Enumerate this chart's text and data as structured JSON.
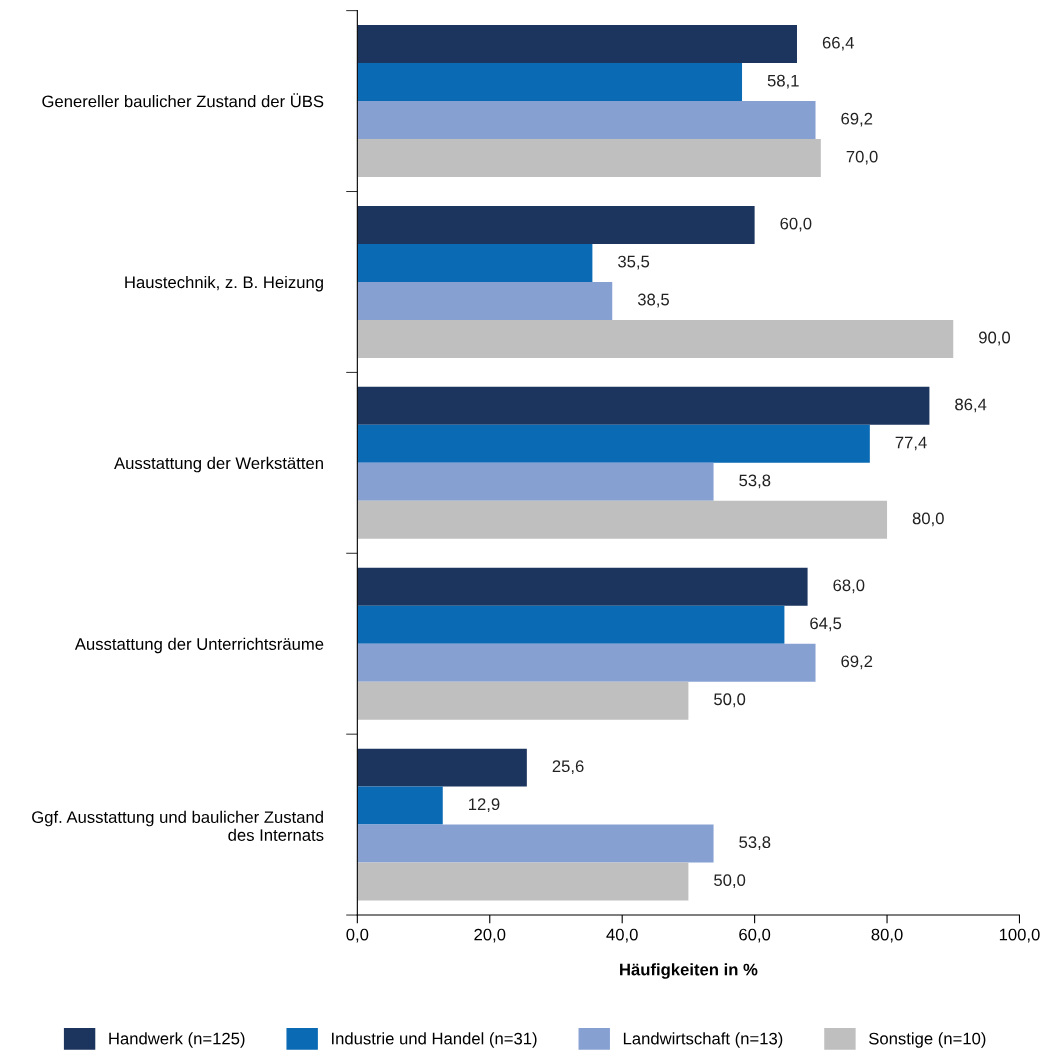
{
  "chart_data": {
    "type": "bar",
    "orientation": "horizontal",
    "xlabel": "Häufigkeiten in %",
    "categories": [
      "Genereller baulicher Zustand der ÜBS",
      "Haustechnik, z. B. Heizung",
      "Ausstattung der Werkstätten",
      "Ausstattung der Unterrichtsräume",
      "Ggf. Ausstattung und baulicher Zustand\ndes Internats"
    ],
    "series": [
      {
        "name": "Handwerk (n=125)",
        "color": "#1c355e",
        "values": [
          66.4,
          60.0,
          86.4,
          68.0,
          25.6
        ],
        "value_labels": [
          "66,4",
          "60,0",
          "86,4",
          "68,0",
          "25,6"
        ]
      },
      {
        "name": "Industrie und Handel (n=31)",
        "color": "#0a6ab4",
        "values": [
          58.1,
          35.5,
          77.4,
          64.5,
          12.9
        ],
        "value_labels": [
          "58,1",
          "35,5",
          "77,4",
          "64,5",
          "12,9"
        ]
      },
      {
        "name": "Landwirtschaft (n=13)",
        "color": "#87a0d2",
        "values": [
          69.2,
          38.5,
          53.8,
          69.2,
          53.8
        ],
        "value_labels": [
          "69,2",
          "38,5",
          "53,8",
          "69,2",
          "53,8"
        ]
      },
      {
        "name": "Sonstige (n=10)",
        "color": "#bfbfbf",
        "values": [
          70.0,
          90.0,
          80.0,
          50.0,
          50.0
        ],
        "value_labels": [
          "70,0",
          "90,0",
          "80,0",
          "50,0",
          "50,0"
        ]
      }
    ],
    "xlim": [
      0,
      100
    ],
    "xticks": [
      {
        "value": 0,
        "label": "0,0"
      },
      {
        "value": 20,
        "label": "20,0"
      },
      {
        "value": 40,
        "label": "40,0"
      },
      {
        "value": 60,
        "label": "60,0"
      },
      {
        "value": 80,
        "label": "80,0"
      },
      {
        "value": 100,
        "label": "100,0"
      }
    ],
    "legend": "bottom",
    "grid": false
  }
}
